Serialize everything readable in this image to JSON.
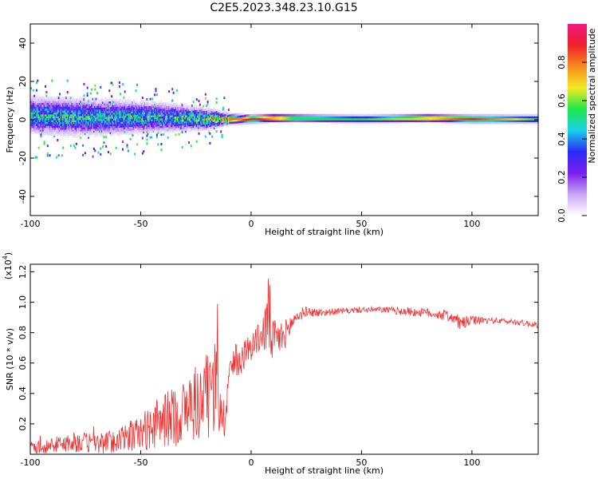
{
  "title": "C2E5.2023.348.23.10.G15",
  "chart_data": [
    {
      "type": "heatmap",
      "xlabel": "Height of straight line (km)",
      "ylabel": "Frequency (Hz)",
      "xlim": [
        -100,
        130
      ],
      "ylim": [
        -50,
        50
      ],
      "xticks": [
        -100,
        -50,
        0,
        50,
        100
      ],
      "yticks": [
        -40,
        -20,
        0,
        20,
        40
      ],
      "colorbar": {
        "label": "Normalized spectral amplitude",
        "range": [
          0,
          1
        ],
        "ticks": [
          "0.0",
          "0.2",
          "0.4",
          "0.6",
          "0.8"
        ],
        "colors": [
          "#ffffff",
          "#c9a6f5",
          "#7a1ff0",
          "#2a2af5",
          "#18d2e8",
          "#1fe84a",
          "#f6ea22",
          "#f58a1c",
          "#f0202a",
          "#f2167c"
        ]
      },
      "ridge": {
        "description_points_x": [
          -100,
          -80,
          -60,
          -40,
          -20,
          -10,
          0,
          10,
          20,
          50,
          80,
          100,
          130
        ],
        "center_freq": [
          2,
          1,
          1,
          1,
          0,
          0,
          0,
          0.5,
          0.5,
          0,
          0.5,
          0,
          0
        ],
        "spread_hz": [
          14,
          14,
          13,
          11,
          8,
          4,
          3,
          3,
          3,
          3,
          3,
          3,
          3
        ],
        "peak_amplitude": [
          0.45,
          0.45,
          0.45,
          0.45,
          0.55,
          0.8,
          0.95,
          0.85,
          0.6,
          0.55,
          0.75,
          0.9,
          0.55
        ]
      },
      "grid": false
    },
    {
      "type": "line",
      "xlabel": "Height of straight line (km)",
      "ylabel": "SNR (10 * v/v)",
      "scale_label": "(x10",
      "scale_exp": "4",
      "scale_close": ")",
      "xlim": [
        -100,
        130
      ],
      "ylim": [
        0,
        1.25
      ],
      "xticks": [
        -100,
        -50,
        0,
        50,
        100
      ],
      "yticks": [
        "0.2",
        "0.4",
        "0.6",
        "0.8",
        "1.0",
        "1.2"
      ],
      "series": [
        {
          "color": "#f03030",
          "envelope_x": [
            -100,
            -90,
            -80,
            -70,
            -60,
            -50,
            -40,
            -30,
            -20,
            -15,
            -12,
            -10,
            -5,
            0,
            5,
            8,
            10,
            15,
            20,
            25,
            30,
            40,
            50,
            60,
            70,
            80,
            90,
            95,
            100,
            110,
            120,
            130
          ],
          "envelope_y": [
            0.04,
            0.06,
            0.08,
            0.07,
            0.09,
            0.14,
            0.22,
            0.28,
            0.38,
            0.45,
            0.2,
            0.55,
            0.62,
            0.72,
            0.78,
            0.9,
            0.74,
            0.78,
            0.9,
            0.94,
            0.93,
            0.94,
            0.95,
            0.95,
            0.94,
            0.93,
            0.91,
            0.86,
            0.88,
            0.88,
            0.87,
            0.85
          ],
          "noise_amplitude": [
            0.04,
            0.05,
            0.07,
            0.07,
            0.08,
            0.12,
            0.18,
            0.22,
            0.28,
            0.35,
            0.1,
            0.12,
            0.1,
            0.1,
            0.1,
            0.3,
            0.15,
            0.1,
            0.05,
            0.03,
            0.03,
            0.02,
            0.02,
            0.02,
            0.03,
            0.03,
            0.04,
            0.05,
            0.03,
            0.02,
            0.02,
            0.02
          ]
        }
      ],
      "grid": false
    }
  ]
}
